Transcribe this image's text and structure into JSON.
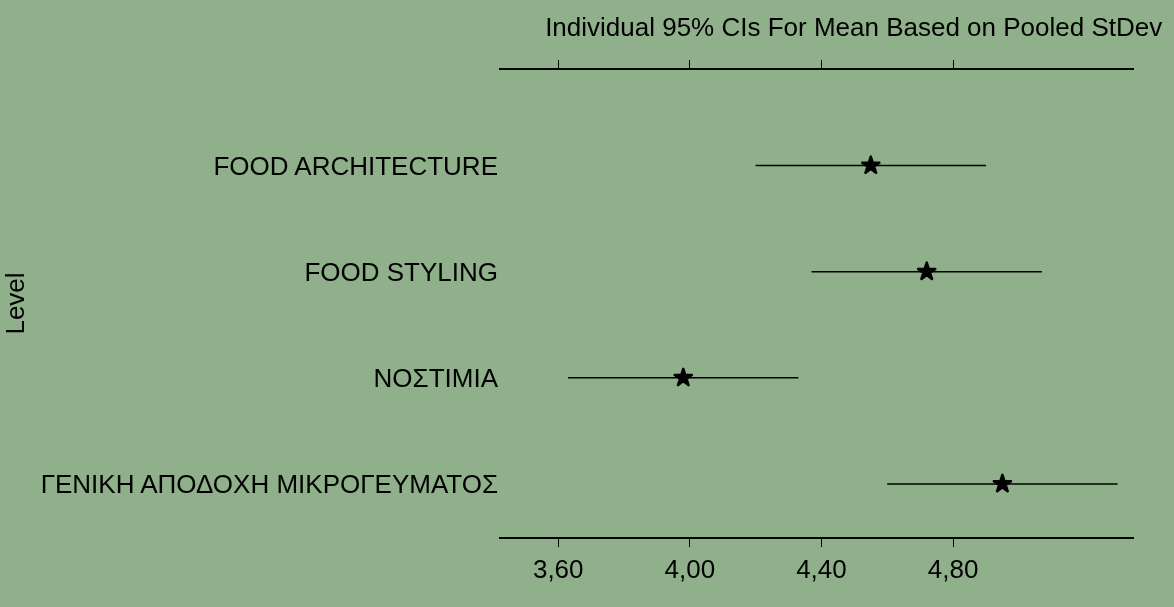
{
  "chart_data": {
    "type": "scatter",
    "orientation": "horizontal",
    "title": "Individual 95% CIs For Mean Based on Pooled StDev",
    "ylabel": "Level",
    "categories": [
      "FOOD ARCHITECTURE",
      "FOOD STYLING",
      "ΝΟΣΤΙΜΙΑ",
      "ΓΕΝΙΚΗ ΑΠΟΔΟΧΗ ΜΙΚΡΟΓΕΥΜΑΤΟΣ"
    ],
    "values": [
      4.55,
      4.72,
      3.98,
      4.95
    ],
    "errors": [
      0.35,
      0.35,
      0.35,
      0.35
    ],
    "color": "#000000",
    "marker": "star",
    "xlim": [
      3.42,
      5.35
    ],
    "xticks": [
      {
        "value": 3.6,
        "label": "3,60"
      },
      {
        "value": 4.0,
        "label": "4,00"
      },
      {
        "value": 4.4,
        "label": "4,40"
      },
      {
        "value": 4.8,
        "label": "4,80"
      }
    ],
    "grid": false,
    "legend": false
  }
}
